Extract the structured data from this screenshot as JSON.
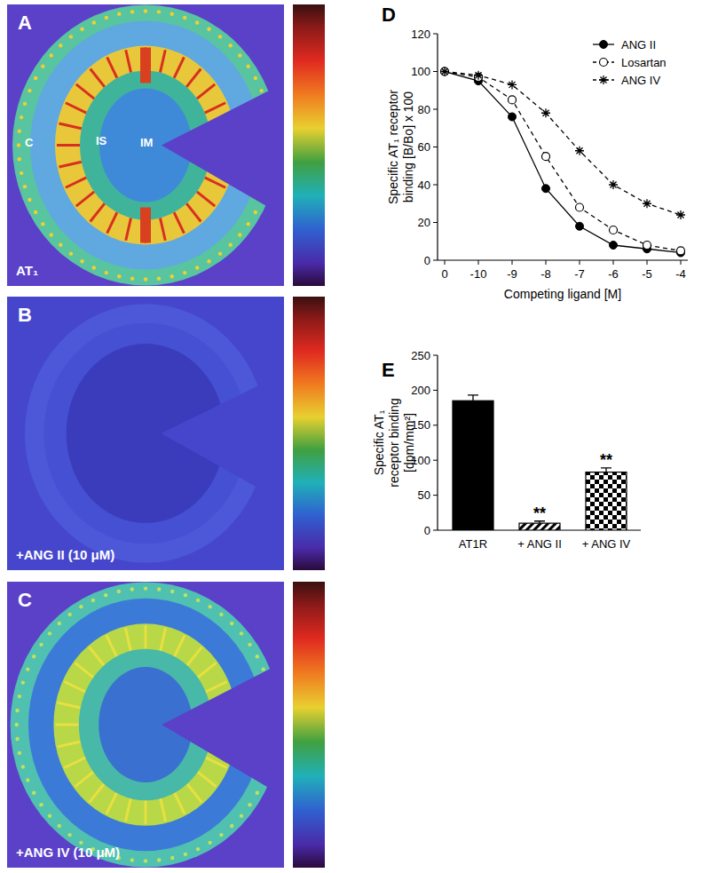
{
  "image_panels": [
    {
      "letter": "A",
      "label": "AT₁",
      "regions": [
        "C",
        "IS",
        "IM"
      ]
    },
    {
      "letter": "B",
      "label": "+ANG II (10 μM)"
    },
    {
      "letter": "C",
      "label": "+ANG IV (10 μM)"
    }
  ],
  "chart_data": [
    {
      "type": "line",
      "title": "D",
      "x_label": "Competing ligand [M]",
      "y_label": [
        "Specific AT₁ receptor",
        "binding [B/Bo] x 100"
      ],
      "categories": [
        "0",
        "-10",
        "-9",
        "-8",
        "-7",
        "-6",
        "-5",
        "-4"
      ],
      "ylim": [
        0,
        120
      ],
      "yticks": [
        0,
        20,
        40,
        60,
        80,
        100,
        120
      ],
      "legend": "upper right",
      "series": [
        {
          "name": "ANG II",
          "color": "#000000",
          "marker": "filled-circle",
          "line_style": "solid",
          "values": [
            100,
            95,
            76,
            38,
            18,
            8,
            6,
            4
          ]
        },
        {
          "name": "Losartan",
          "color": "#000000",
          "marker": "open-circle",
          "line_style": "dashed",
          "values": [
            100,
            97,
            85,
            55,
            28,
            16,
            8,
            5
          ]
        },
        {
          "name": "ANG IV",
          "color": "#000000",
          "marker": "asterisk",
          "line_style": "dashed",
          "values": [
            100,
            98,
            93,
            78,
            58,
            40,
            30,
            24
          ]
        }
      ]
    },
    {
      "type": "bar",
      "title": "E",
      "y_label": [
        "Specific AT₁",
        "receptor binding",
        "[dpm/mm²]"
      ],
      "categories": [
        "AT1R",
        "+ ANG II",
        "+ ANG IV"
      ],
      "values": [
        185,
        10,
        83
      ],
      "errors": [
        8,
        3,
        6
      ],
      "colors": [
        "#000000",
        "#000000",
        "#000000"
      ],
      "ylim": [
        0,
        250
      ],
      "yticks": [
        0,
        50,
        100,
        150,
        200,
        250
      ],
      "annotations": [
        {
          "text": "**",
          "category": "+ ANG II"
        },
        {
          "text": "**",
          "category": "+ ANG IV"
        }
      ]
    }
  ]
}
